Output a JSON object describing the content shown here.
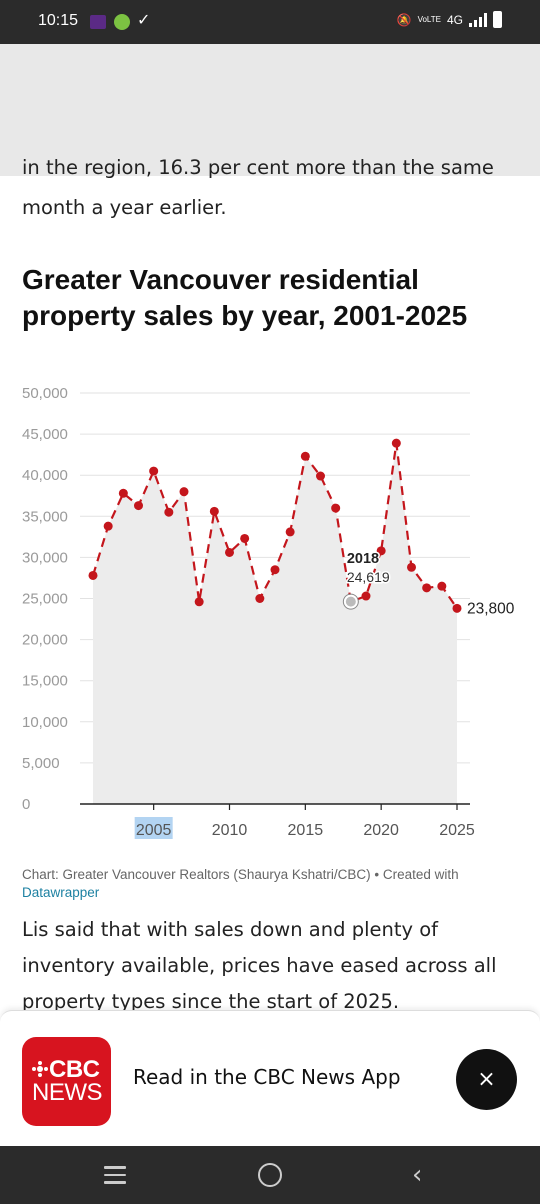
{
  "status_bar": {
    "time": "10:15",
    "network": "4G",
    "volte": "VoLTE"
  },
  "article": {
    "para1_cut": "in the region, 16.3 per cent more than the same",
    "para1_line": "month a year earlier.",
    "chart_title": "Greater Vancouver residential property sales by year, 2001-2025",
    "credit": "Chart: Greater Vancouver Realtors (Shaurya Kshatri/CBC) • Created with",
    "credit_link": "Datawrapper",
    "para2": "Lis said that with sales down and plenty of inventory available, prices have eased across all property types since the start of 2025."
  },
  "chart_data": {
    "type": "line",
    "title": "Greater Vancouver residential property sales by year, 2001-2025",
    "x": [
      2001,
      2002,
      2003,
      2004,
      2005,
      2006,
      2007,
      2008,
      2009,
      2010,
      2011,
      2012,
      2013,
      2014,
      2015,
      2016,
      2017,
      2018,
      2019,
      2020,
      2021,
      2022,
      2023,
      2024,
      2025
    ],
    "values": [
      27800,
      33800,
      37800,
      36300,
      40500,
      35500,
      38000,
      24600,
      35600,
      30600,
      32300,
      25000,
      28500,
      33100,
      42300,
      39900,
      36000,
      24619,
      25300,
      30800,
      43900,
      28800,
      26300,
      26500,
      23800
    ],
    "ylim": [
      0,
      50000
    ],
    "y_ticks": [
      "0",
      "5,000",
      "10,000",
      "15,000",
      "20,000",
      "25,000",
      "30,000",
      "35,000",
      "40,000",
      "45,000",
      "50,000"
    ],
    "x_ticks": [
      "2005",
      "2010",
      "2015",
      "2020",
      "2025"
    ],
    "highlight": {
      "year": "2018",
      "value": "24,619"
    },
    "end_label": "23,800",
    "line_color": "#c4161c",
    "area_color": "#ececec",
    "grid": true
  },
  "app_banner": {
    "logo_line1": "CBC",
    "logo_line2": "NEWS",
    "text": "Read in the CBC News App",
    "close": "×"
  }
}
